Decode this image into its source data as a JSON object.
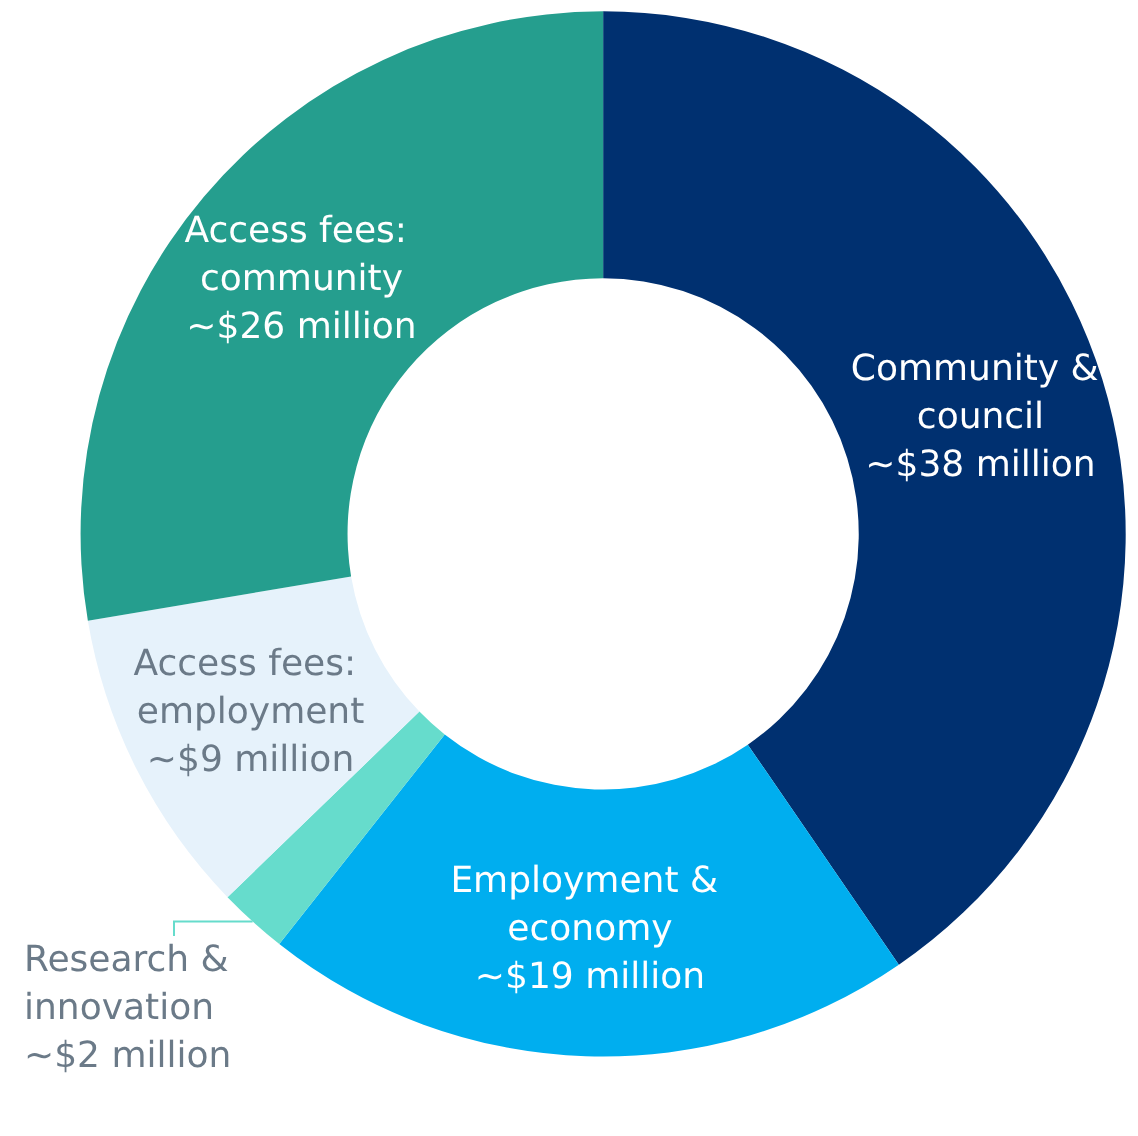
{
  "chart_data": {
    "type": "donut",
    "categories": [
      "Community & council",
      "Employment & economy",
      "Research & innovation",
      "Access fees: employment",
      "Access fees: community"
    ],
    "values": [
      38,
      19,
      2,
      9,
      26
    ],
    "colors": [
      "#003070",
      "#00aeef",
      "#66dccc",
      "#e6f2fb",
      "#259e8e"
    ],
    "value_labels": [
      "~$38 million",
      "~$19 million",
      "~$2 million",
      "~$9 million",
      "~$26 million"
    ]
  }
}
